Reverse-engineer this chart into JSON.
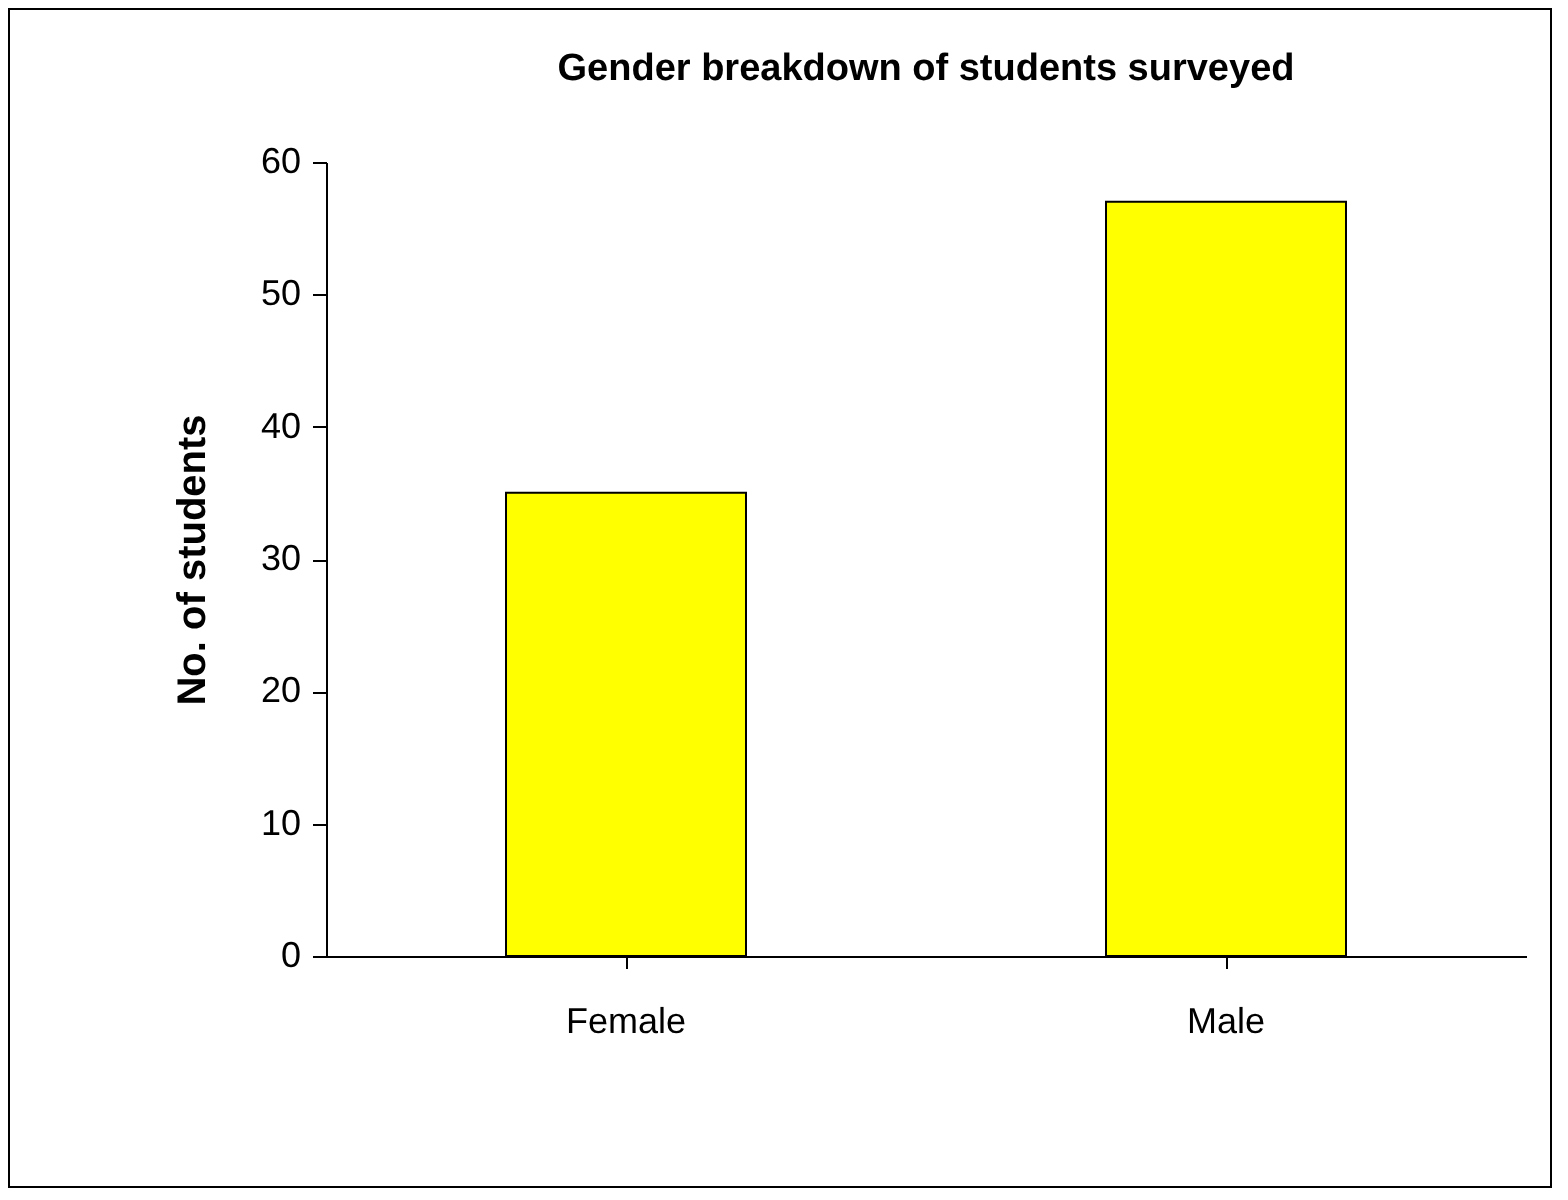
{
  "chart_data": {
    "type": "bar",
    "title": "Gender breakdown of students surveyed",
    "ylabel": "No. of students",
    "categories": [
      "Female",
      "Male"
    ],
    "values": [
      35,
      57
    ],
    "color": "#ffff00",
    "ylim": [
      0,
      60
    ],
    "yticks": [
      0,
      10,
      20,
      30,
      40,
      50,
      60
    ],
    "grid": false
  }
}
